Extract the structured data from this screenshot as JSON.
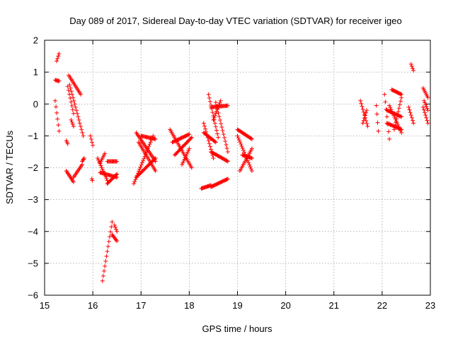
{
  "chart_data": {
    "type": "scatter",
    "title": "Day 089 of 2017, Sidereal Day-to-day VTEC variation (SDTVAR) for receiver igeo",
    "xlabel": "GPS time / hours",
    "ylabel": "SDTVAR / TECUs",
    "xlim": [
      15,
      23
    ],
    "ylim": [
      -6,
      2
    ],
    "xticks": [
      15,
      16,
      17,
      18,
      19,
      20,
      21,
      22,
      23
    ],
    "yticks": [
      -6,
      -5,
      -4,
      -3,
      -2,
      -1,
      0,
      1,
      2
    ],
    "grid": true,
    "marker": "plus",
    "color": "#ff0000",
    "segments": [
      [
        15.25,
        1.35,
        15.3,
        1.58
      ],
      [
        15.22,
        0.1,
        15.3,
        -0.85
      ],
      [
        15.22,
        0.75,
        15.3,
        0.72
      ],
      [
        15.45,
        -1.15,
        15.48,
        -1.25
      ],
      [
        15.48,
        0.55,
        15.6,
        -0.3
      ],
      [
        15.5,
        0.9,
        15.75,
        0.3
      ],
      [
        15.52,
        0.6,
        15.8,
        -1.0
      ],
      [
        15.55,
        -0.5,
        15.6,
        -0.7
      ],
      [
        15.45,
        -2.1,
        15.6,
        -2.45
      ],
      [
        15.6,
        -2.3,
        15.78,
        -1.9
      ],
      [
        15.78,
        -1.8,
        15.82,
        -1.7
      ],
      [
        15.95,
        -1.0,
        16.0,
        -1.3
      ],
      [
        15.98,
        -2.35,
        15.99,
        -2.4
      ],
      [
        16.1,
        -1.7,
        16.3,
        -2.4
      ],
      [
        16.15,
        -2.15,
        16.5,
        -2.3
      ],
      [
        16.15,
        -1.85,
        16.25,
        -1.55
      ],
      [
        16.3,
        -1.8,
        16.5,
        -1.8
      ],
      [
        16.3,
        -2.5,
        16.5,
        -2.2
      ],
      [
        16.2,
        -5.55,
        16.4,
        -3.7
      ],
      [
        16.4,
        -4.1,
        16.5,
        -4.3
      ],
      [
        16.45,
        -3.8,
        16.5,
        -4.0
      ],
      [
        16.85,
        -2.5,
        17.25,
        -1.0
      ],
      [
        16.9,
        -0.9,
        17.3,
        -1.8
      ],
      [
        16.9,
        -2.3,
        17.3,
        -1.7
      ],
      [
        16.95,
        -1.2,
        17.3,
        -2.1
      ],
      [
        17.0,
        -1.0,
        17.3,
        -1.1
      ],
      [
        17.6,
        -0.8,
        18.05,
        -2.0
      ],
      [
        17.65,
        -1.2,
        18.0,
        -0.95
      ],
      [
        17.7,
        -1.6,
        18.05,
        -1.05
      ],
      [
        17.85,
        -1.9,
        18.0,
        -1.4
      ],
      [
        18.25,
        -2.65,
        18.45,
        -2.55
      ],
      [
        18.45,
        -2.6,
        18.8,
        -2.35
      ],
      [
        18.3,
        -0.6,
        18.5,
        -1.7
      ],
      [
        18.4,
        0.3,
        18.6,
        -1.05
      ],
      [
        18.3,
        -0.9,
        18.55,
        -1.2
      ],
      [
        18.45,
        -1.5,
        18.8,
        -1.8
      ],
      [
        18.45,
        -0.1,
        18.8,
        -0.05
      ],
      [
        18.55,
        0.05,
        18.8,
        -1.5
      ],
      [
        18.5,
        -0.5,
        18.65,
        0.1
      ],
      [
        19.0,
        -0.8,
        19.3,
        -1.1
      ],
      [
        19.0,
        -1.0,
        19.3,
        -2.1
      ],
      [
        19.05,
        -2.1,
        19.3,
        -1.4
      ],
      [
        19.1,
        -1.6,
        19.3,
        -1.7
      ],
      [
        21.55,
        0.1,
        21.7,
        -0.7
      ],
      [
        21.6,
        -0.6,
        21.68,
        -0.2
      ],
      [
        21.88,
        -0.05,
        21.92,
        -0.85
      ],
      [
        22.05,
        0.3,
        22.15,
        -1.1
      ],
      [
        22.1,
        -0.2,
        22.4,
        -0.4
      ],
      [
        22.1,
        -0.6,
        22.4,
        -0.8
      ],
      [
        22.15,
        -0.05,
        22.4,
        -0.9
      ],
      [
        22.2,
        0.45,
        22.4,
        0.3
      ],
      [
        22.25,
        -0.8,
        22.4,
        0.2
      ],
      [
        22.6,
        1.25,
        22.65,
        1.05
      ],
      [
        22.55,
        -0.1,
        22.65,
        -0.6
      ],
      [
        22.85,
        0.5,
        22.95,
        0.2
      ],
      [
        22.85,
        -0.1,
        22.95,
        -0.6
      ],
      [
        22.87,
        0.1,
        22.95,
        -0.2
      ]
    ]
  }
}
